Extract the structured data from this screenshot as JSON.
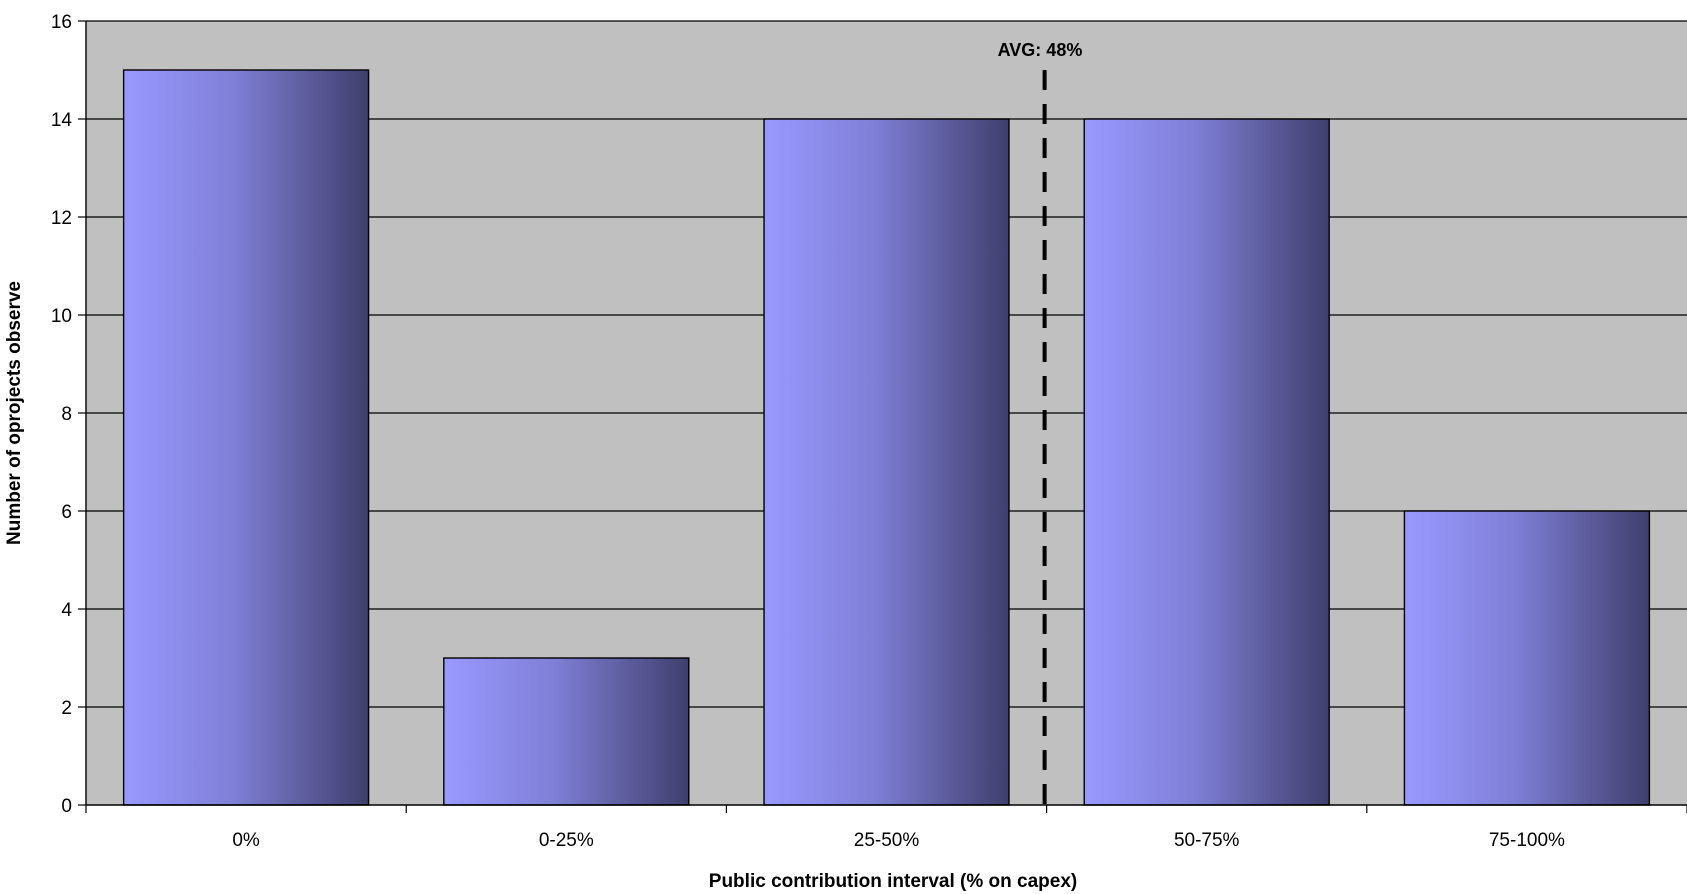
{
  "chart_data": {
    "type": "bar",
    "title": "",
    "xlabel": "Public contribution interval (% on capex)",
    "ylabel": "Number of oprojects observe",
    "categories": [
      "0%",
      "0-25%",
      "25-50%",
      "50-75%",
      "75-100%"
    ],
    "values": [
      15,
      3,
      14,
      14,
      6
    ],
    "ylim": [
      0,
      16
    ],
    "yticks": [
      "0",
      "2",
      "4",
      "6",
      "8",
      "10",
      "12",
      "14",
      "16"
    ],
    "grid": true,
    "legend": "none",
    "annotation": {
      "label": "AVG: 48%",
      "value": 48
    },
    "colors": {
      "plot_background": "#c0c0c0",
      "bar_light": "#9999ff",
      "bar_dark": "#3f3f6e",
      "gridline": "#000000",
      "avg_line": "#000000"
    }
  }
}
